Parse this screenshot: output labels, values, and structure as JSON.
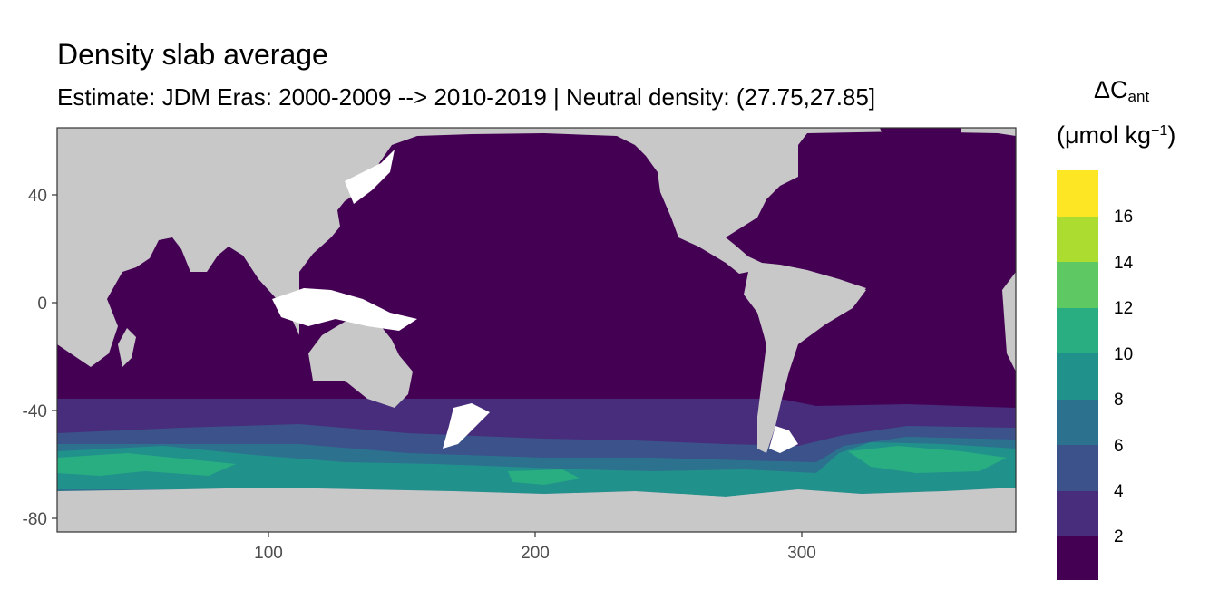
{
  "map": {
    "title": "Density slab average",
    "subtitle": "Estimate: JDM Eras: 2000-2009 --> 2010-2019 | Neutral density: (27.75,27.85]",
    "x_axis": {
      "ticks": [
        "100",
        "200",
        "300"
      ]
    },
    "y_axis": {
      "ticks": [
        "40",
        "0",
        "-40",
        "-80"
      ]
    },
    "colors": {
      "land": "#c8c8c8",
      "no_data": "#ffffff",
      "panel_border": "#333333"
    }
  },
  "legend": {
    "title_symbol": "ΔC",
    "title_subscript": "ant",
    "unit_open": "(μmol kg",
    "unit_superscript": "−1",
    "unit_close": ")",
    "labels": [
      "16",
      "14",
      "12",
      "10",
      "8",
      "6",
      "4",
      "2"
    ],
    "colors": [
      "#fde725",
      "#addc30",
      "#5ec962",
      "#28ae80",
      "#21918c",
      "#2c728e",
      "#3b528b",
      "#472d7b",
      "#440154"
    ]
  }
}
